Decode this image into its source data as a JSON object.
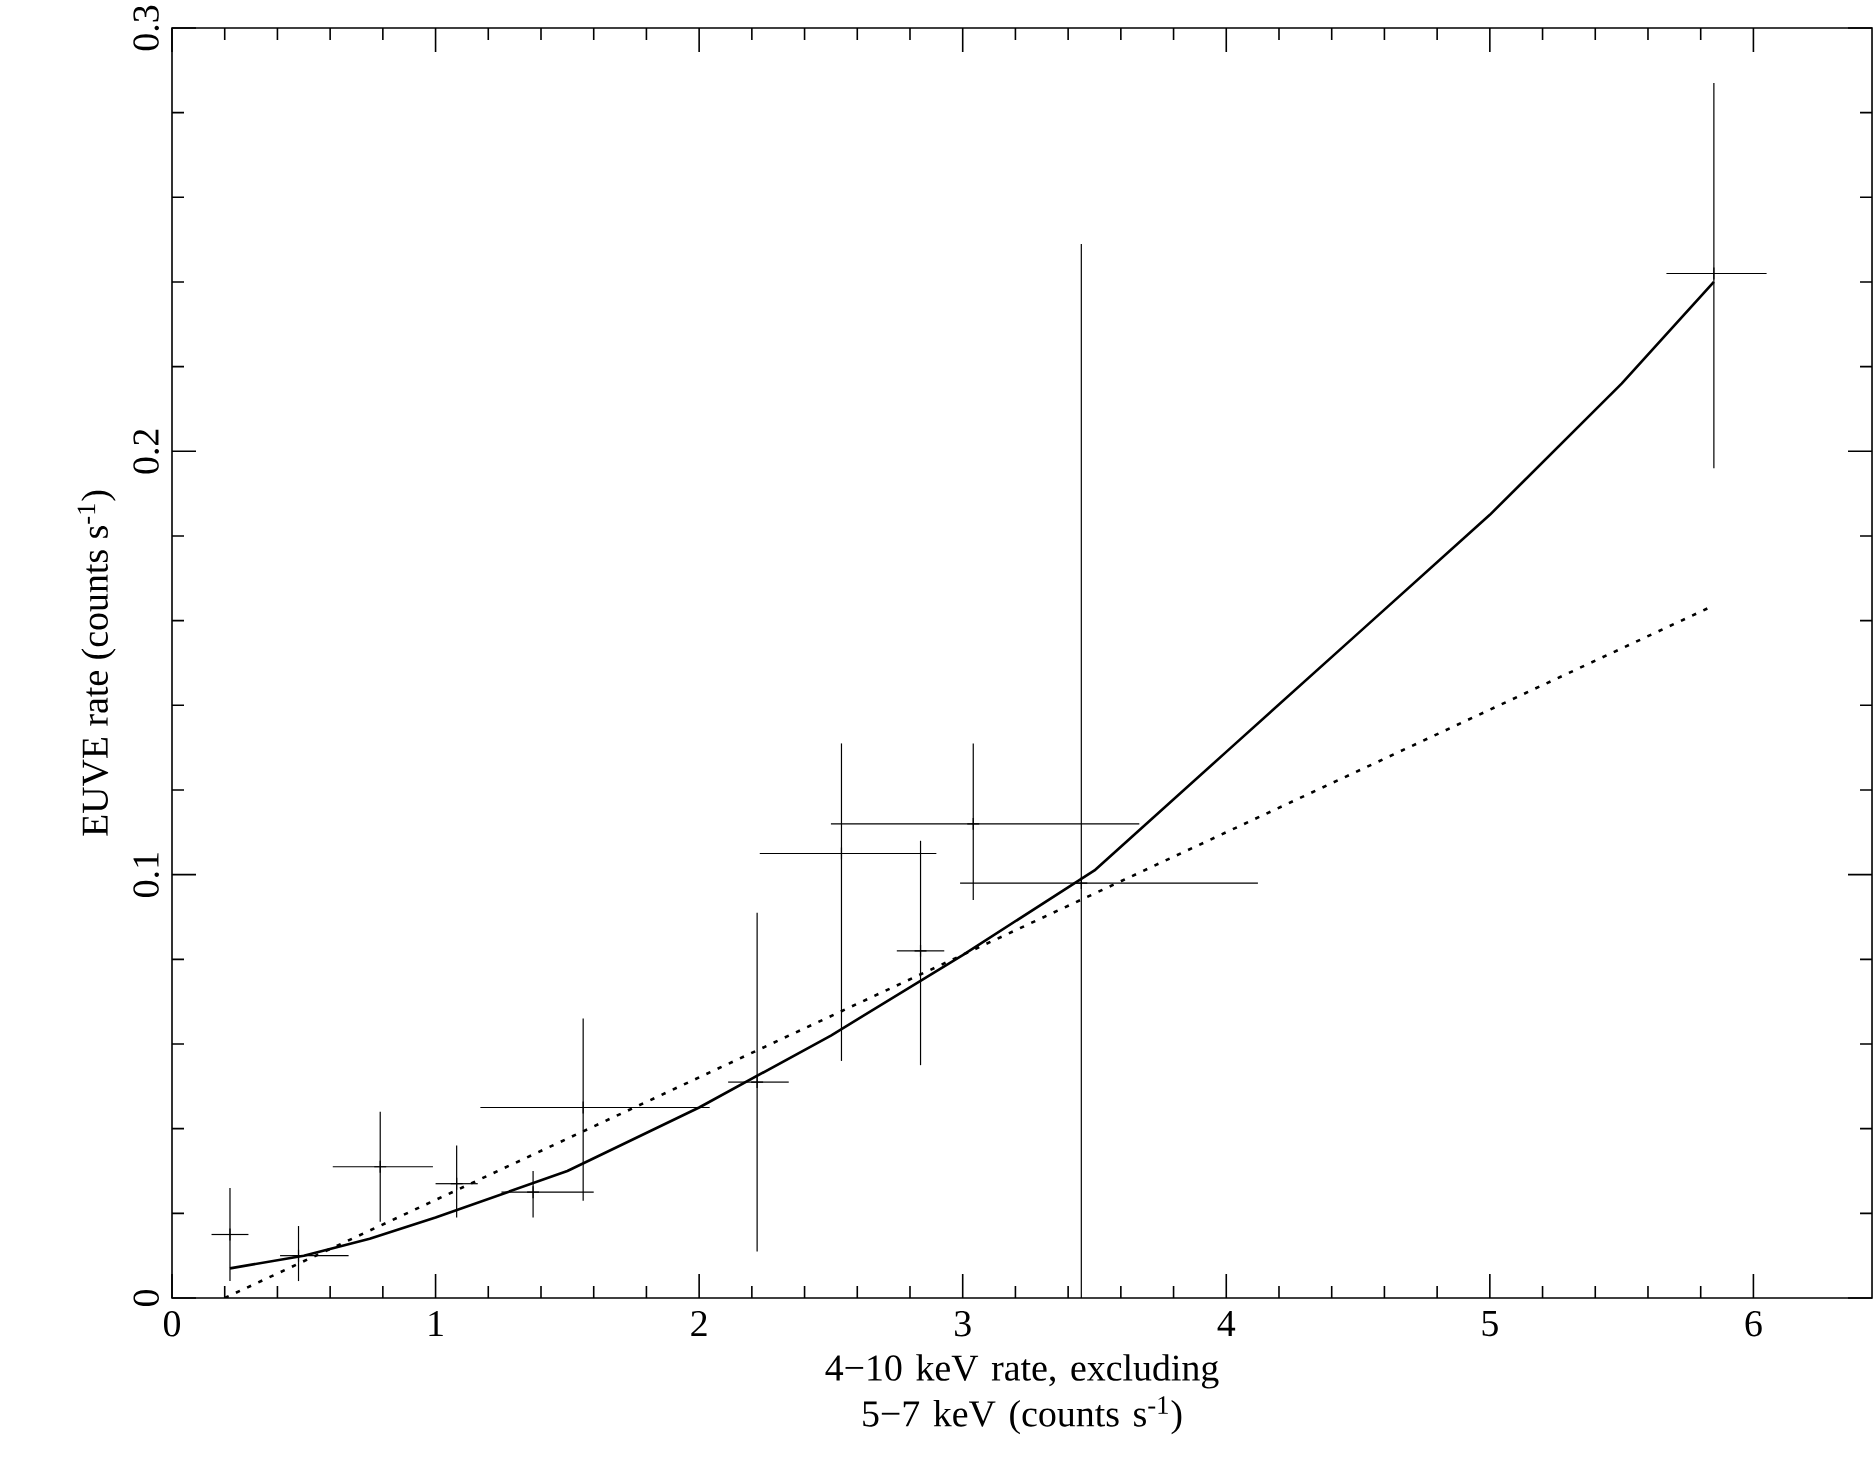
{
  "chart_data": {
    "type": "scatter",
    "xlabel": "4−10 keV rate, excluding 5−7 keV (counts s$^{-1}$)",
    "ylabel": "EUVE rate (counts s$^{-1}$)",
    "xlim": [
      0,
      6.45
    ],
    "ylim": [
      0,
      0.3
    ],
    "xticks": [
      0,
      1,
      2,
      3,
      4,
      5,
      6
    ],
    "yticks": [
      0,
      0.1,
      0.2,
      0.3
    ],
    "grid": false,
    "marker": "cross",
    "series": [
      {
        "color": "#000000",
        "x": [
          0.22,
          0.48,
          0.79,
          1.08,
          1.37,
          1.56,
          2.22,
          2.54,
          2.84,
          3.04,
          3.45,
          5.85
        ],
        "values": [
          0.015,
          0.01,
          0.031,
          0.027,
          0.025,
          0.045,
          0.051,
          0.105,
          0.082,
          0.112,
          0.098,
          0.242
        ],
        "xerrors": [
          [
            0.15,
            0.29
          ],
          [
            0.41,
            0.67
          ],
          [
            0.61,
            0.99
          ],
          [
            1.0,
            1.16
          ],
          [
            1.25,
            1.6
          ],
          [
            1.17,
            2.04
          ],
          [
            2.11,
            2.34
          ],
          [
            2.23,
            2.9
          ],
          [
            2.75,
            2.93
          ],
          [
            2.5,
            3.67
          ],
          [
            2.99,
            4.12
          ],
          [
            5.67,
            6.05
          ]
        ],
        "errors": [
          [
            0.004,
            0.026
          ],
          [
            0.004,
            0.017
          ],
          [
            0.018,
            0.044
          ],
          [
            0.019,
            0.036
          ],
          [
            0.019,
            0.03
          ],
          [
            0.023,
            0.066
          ],
          [
            0.011,
            0.091
          ],
          [
            0.056,
            0.131
          ],
          [
            0.055,
            0.108
          ],
          [
            0.094,
            0.131
          ],
          [
            0.0,
            0.249
          ],
          [
            0.196,
            0.287
          ]
        ]
      },
      {
        "type": "line",
        "marker": "none",
        "color": "#000000",
        "line_style": "solid",
        "x": [
          0.22,
          0.5,
          0.75,
          1.0,
          1.5,
          2.0,
          2.5,
          3.0,
          3.5,
          4.0,
          4.5,
          5.0,
          5.5,
          5.85
        ],
        "values": [
          0.007,
          0.01,
          0.014,
          0.019,
          0.03,
          0.045,
          0.062,
          0.081,
          0.101,
          0.129,
          0.157,
          0.185,
          0.216,
          0.24
        ]
      },
      {
        "type": "line",
        "marker": "none",
        "color": "#000000",
        "line_style": "dotted",
        "x": [
          0.2,
          5.83
        ],
        "values": [
          0.0,
          0.163
        ]
      }
    ]
  }
}
